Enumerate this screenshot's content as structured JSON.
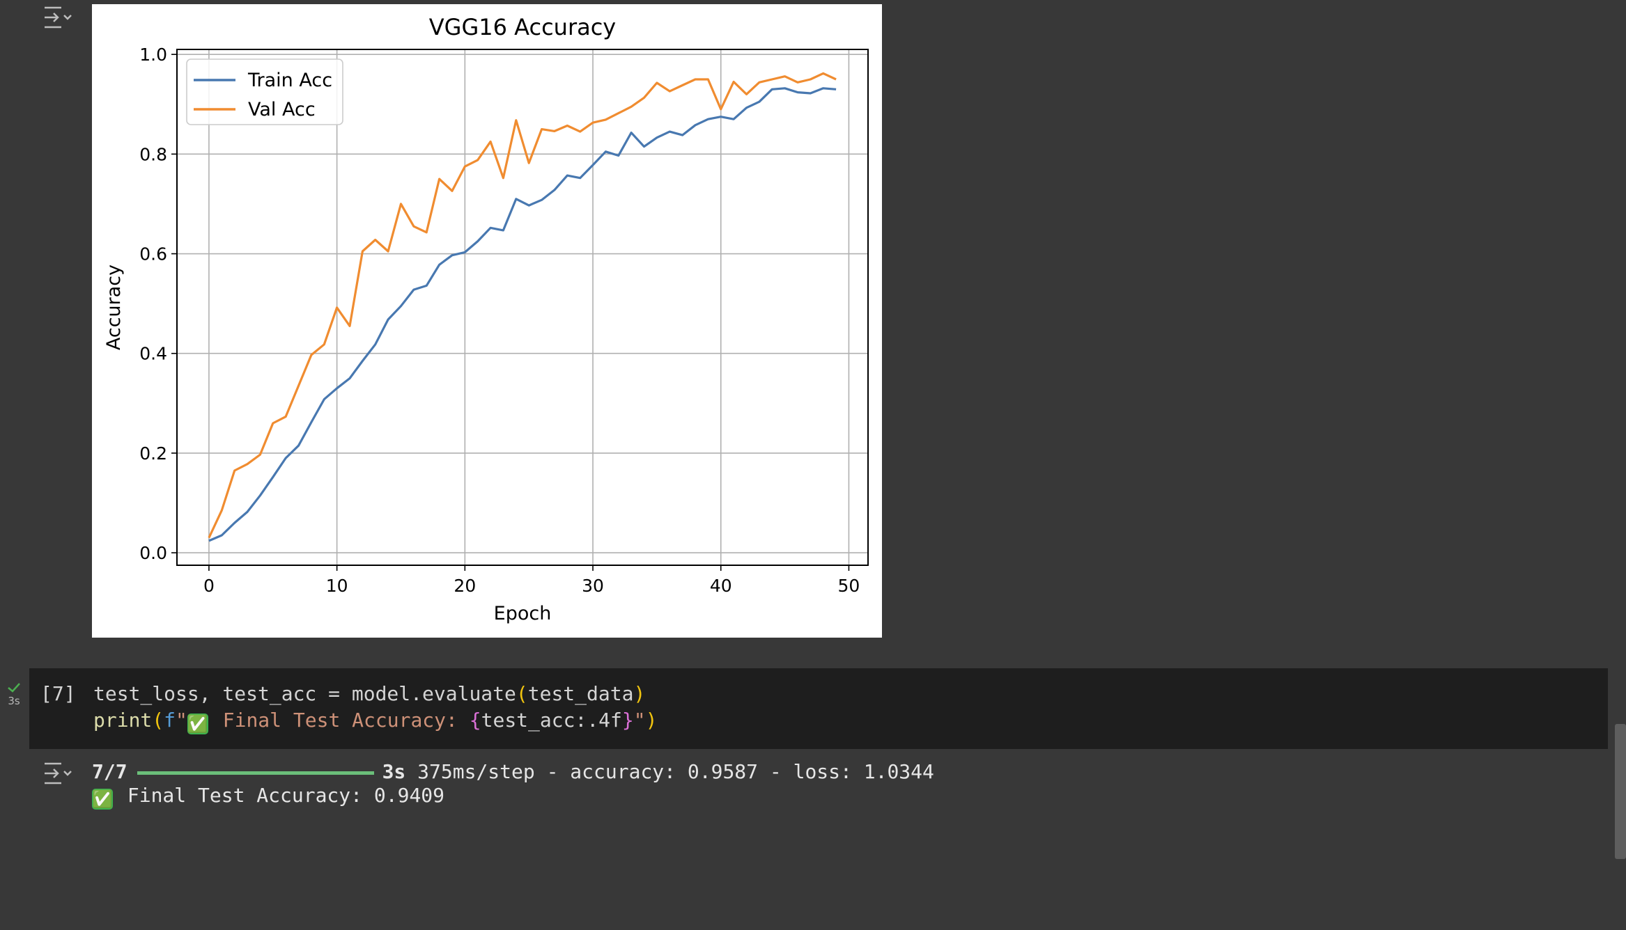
{
  "chart_data": {
    "type": "line",
    "title": "VGG16 Accuracy",
    "xlabel": "Epoch",
    "ylabel": "Accuracy",
    "xlim": [
      -2.5,
      51.5
    ],
    "ylim": [
      -0.025,
      1.01
    ],
    "xticks": [
      0,
      10,
      20,
      30,
      40,
      50
    ],
    "xtick_labels": [
      "0",
      "10",
      "20",
      "30",
      "40",
      "50"
    ],
    "yticks": [
      0.0,
      0.2,
      0.4,
      0.6,
      0.8,
      1.0
    ],
    "ytick_labels": [
      "0.0",
      "0.2",
      "0.4",
      "0.6",
      "0.8",
      "1.0"
    ],
    "grid": true,
    "legend_position": "upper-left",
    "x": [
      0,
      1,
      2,
      3,
      4,
      5,
      6,
      7,
      8,
      9,
      10,
      11,
      12,
      13,
      14,
      15,
      16,
      17,
      18,
      19,
      20,
      21,
      22,
      23,
      24,
      25,
      26,
      27,
      28,
      29,
      30,
      31,
      32,
      33,
      34,
      35,
      36,
      37,
      38,
      39,
      40,
      41,
      42,
      43,
      44,
      45,
      46,
      47,
      48,
      49
    ],
    "series": [
      {
        "name": "Train Acc",
        "color": "#4878b0",
        "values": [
          0.024,
          0.035,
          0.06,
          0.082,
          0.115,
          0.152,
          0.19,
          0.215,
          0.262,
          0.308,
          0.33,
          0.35,
          0.385,
          0.418,
          0.468,
          0.495,
          0.528,
          0.536,
          0.578,
          0.597,
          0.603,
          0.625,
          0.652,
          0.647,
          0.71,
          0.697,
          0.708,
          0.728,
          0.757,
          0.752,
          0.778,
          0.805,
          0.797,
          0.843,
          0.815,
          0.833,
          0.845,
          0.838,
          0.858,
          0.87,
          0.875,
          0.87,
          0.893,
          0.905,
          0.93,
          0.932,
          0.924,
          0.922,
          0.932,
          0.93
        ]
      },
      {
        "name": "Val Acc",
        "color": "#f08c30",
        "values": [
          0.03,
          0.085,
          0.165,
          0.178,
          0.197,
          0.26,
          0.273,
          0.335,
          0.397,
          0.418,
          0.492,
          0.455,
          0.605,
          0.628,
          0.605,
          0.7,
          0.655,
          0.643,
          0.75,
          0.726,
          0.775,
          0.788,
          0.825,
          0.752,
          0.868,
          0.782,
          0.85,
          0.846,
          0.857,
          0.845,
          0.863,
          0.869,
          0.882,
          0.895,
          0.913,
          0.943,
          0.926,
          0.938,
          0.95,
          0.95,
          0.89,
          0.945,
          0.92,
          0.944,
          0.95,
          0.956,
          0.944,
          0.95,
          0.962,
          0.95
        ]
      }
    ]
  },
  "code_cell": {
    "run_status_icon": "checkmark-icon",
    "run_time": "3s",
    "execution_count": "[7]",
    "line1_segments": [
      "test_loss, test_acc = model.evaluate",
      "(",
      "test_data",
      ")"
    ],
    "line2_segments": [
      "print",
      "(",
      "f",
      "\"",
      "✅",
      " Final Test Accuracy: ",
      "{",
      "test_acc:.4f",
      "}",
      "\"",
      ")"
    ]
  },
  "output": {
    "output_icon": "output-toggle-icon",
    "progress_steps": "7/7",
    "progress_fraction": 1.0,
    "elapsed": "3s",
    "metrics": "375ms/step - accuracy: 0.9587 - loss: 1.0344",
    "result_emoji": "✅",
    "result_text": "Final Test Accuracy: 0.9409"
  }
}
